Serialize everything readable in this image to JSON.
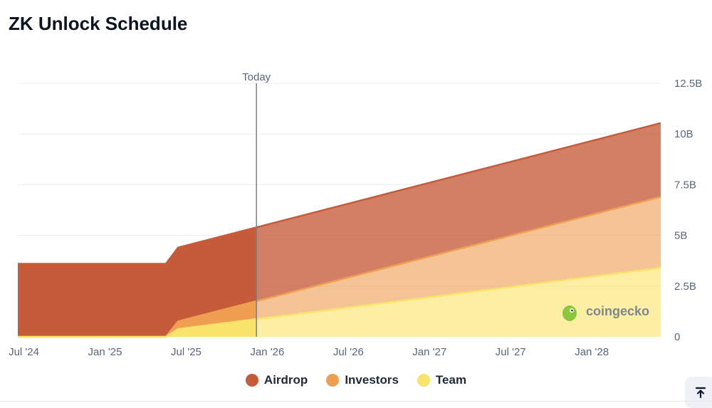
{
  "page": {
    "title": "ZK Unlock Schedule"
  },
  "watermark": {
    "text": "coingecko"
  },
  "colors": {
    "airdrop": "#c65b3a",
    "investors": "#ee9f52",
    "team": "#fae36b",
    "grid": "#ececec",
    "axis_text": "#58667e"
  },
  "chart_data": {
    "type": "area",
    "stacked": true,
    "title": "ZK Unlock Schedule",
    "xlabel": "",
    "ylabel": "",
    "x_unit": "months since Jun 2024",
    "x_range": [
      0.55,
      48.1
    ],
    "ylim": [
      0,
      12.5
    ],
    "y_ticks": [
      0,
      2.5,
      5,
      7.5,
      10,
      12.5
    ],
    "y_tick_labels": [
      "0",
      "2.5B",
      "5B",
      "7.5B",
      "10B",
      "12.5B"
    ],
    "x_ticks": [
      1,
      7,
      13,
      19,
      25,
      31,
      37,
      43
    ],
    "x_tick_labels": [
      "Jul '24",
      "Jan '25",
      "Jul '25",
      "Jan '26",
      "Jul '26",
      "Jan '27",
      "Jul '27",
      "Jan '28"
    ],
    "today": {
      "label": "Today",
      "x": 18.2
    },
    "x": [
      0.55,
      11.5,
      12.4,
      48.1
    ],
    "series": [
      {
        "name": "Team",
        "values": [
          0,
          0,
          0.38,
          3.4
        ]
      },
      {
        "name": "Investors",
        "values": [
          0,
          0,
          0.38,
          3.5
        ]
      },
      {
        "name": "Airdrop",
        "values": [
          3.6,
          3.6,
          3.64,
          3.64
        ]
      }
    ],
    "legend": [
      "Airdrop",
      "Investors",
      "Team"
    ],
    "legend_position": "bottom-center"
  },
  "legend": {
    "items": [
      {
        "label": "Airdrop",
        "color": "#c65b3a"
      },
      {
        "label": "Investors",
        "color": "#ee9f52"
      },
      {
        "label": "Team",
        "color": "#fae36b"
      }
    ]
  },
  "scroll_top": {
    "icon": "arrow-up-to-line-icon"
  }
}
